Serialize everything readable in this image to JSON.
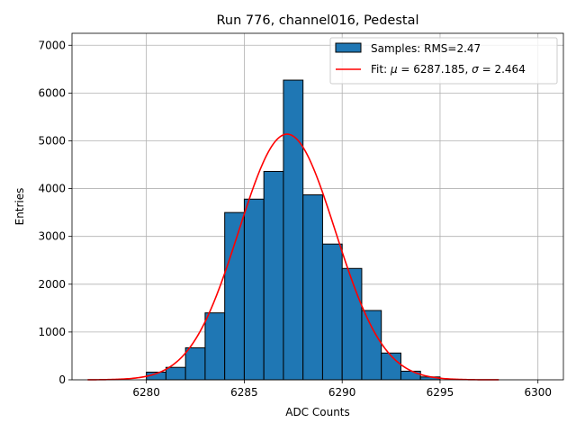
{
  "chart_data": {
    "type": "bar",
    "title": "Run 776, channel016, Pedestal",
    "xlabel": "ADC Counts",
    "ylabel": "Entries",
    "xlim": [
      6276.2,
      6301.3
    ],
    "ylim": [
      0,
      7250
    ],
    "xticks": [
      6280,
      6285,
      6290,
      6295,
      6300
    ],
    "yticks": [
      0,
      1000,
      2000,
      3000,
      4000,
      5000,
      6000,
      7000
    ],
    "grid": true,
    "bar_color": "#1f77b4",
    "fit_color": "#ff0000",
    "histogram": {
      "name": "Samples: RMS=2.47",
      "bin_width": 1,
      "bin_left_edges": [
        6280,
        6281,
        6282,
        6283,
        6284,
        6285,
        6286,
        6287,
        6288,
        6289,
        6290,
        6291,
        6292,
        6293,
        6294
      ],
      "values": [
        160,
        260,
        670,
        1400,
        3500,
        3780,
        4360,
        6270,
        3870,
        2840,
        2330,
        1450,
        560,
        180,
        60
      ]
    },
    "fit": {
      "name_prefix": "Fit: ",
      "mu_symbol": "μ",
      "sigma_symbol": "σ",
      "mu": "6287.185",
      "sigma": "2.464",
      "amplitude": 5140,
      "x_range": [
        6277,
        6298
      ]
    },
    "legend_position": "upper right"
  }
}
